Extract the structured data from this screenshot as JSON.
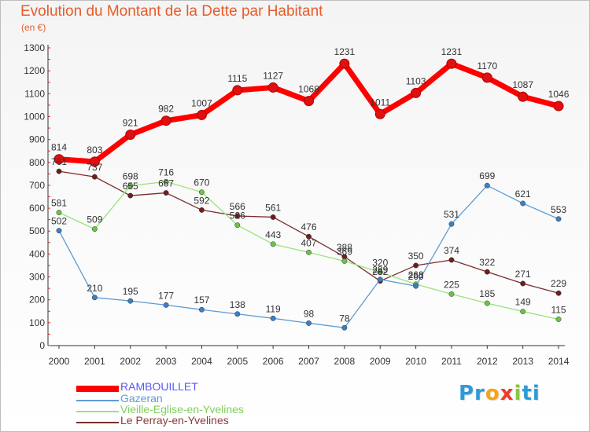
{
  "header": {
    "title": "Evolution du Montant de la Dette par Habitant",
    "unit": "(en €)"
  },
  "logo": {
    "parts": [
      {
        "text": "Pr",
        "color": "#2e9ad8"
      },
      {
        "text": "o",
        "color": "#f7a21b"
      },
      {
        "text": "x",
        "color": "#e93c2a"
      },
      {
        "text": "i",
        "color": "#8cc63f"
      },
      {
        "text": "ti",
        "color": "#2e9ad8"
      }
    ]
  },
  "chart_data": {
    "type": "line",
    "title": "Evolution du Montant de la Dette par Habitant",
    "subtitle": "(en €)",
    "x": [
      "2000",
      "2001",
      "2002",
      "2003",
      "2004",
      "2005",
      "2006",
      "2007",
      "2008",
      "2009",
      "2010",
      "2011",
      "2012",
      "2013",
      "2014"
    ],
    "ylim": [
      0,
      1300
    ],
    "yticks": [
      0,
      100,
      200,
      300,
      400,
      500,
      600,
      700,
      800,
      900,
      1000,
      1100,
      1200,
      1300
    ],
    "grid": false,
    "legend_position": "bottom-left",
    "series": [
      {
        "name": "RAMBOUILLET",
        "color": "#ff0000",
        "marker_color": "#e01010",
        "text_color": "#5858f8",
        "width": "thick",
        "values": [
          814,
          803,
          921,
          982,
          1007,
          1115,
          1127,
          1068,
          1231,
          1011,
          1103,
          1231,
          1170,
          1087,
          1046
        ]
      },
      {
        "name": "Gazeran",
        "color": "#5d9bd3",
        "marker_color": "#3b7fc4",
        "text_color": "#5d9bd3",
        "width": "thin",
        "values": [
          502,
          210,
          195,
          177,
          157,
          138,
          119,
          98,
          78,
          289,
          260,
          531,
          699,
          621,
          553
        ]
      },
      {
        "name": "Vieille-Eglise-en-Yvelines",
        "color": "#9be37a",
        "marker_color": "#6cc24a",
        "text_color": "#7dcf5a",
        "width": "thin",
        "values": [
          581,
          509,
          698,
          716,
          670,
          526,
          443,
          407,
          369,
          320,
          268,
          225,
          185,
          149,
          115
        ]
      },
      {
        "name": "Le Perray-en-Yvelines",
        "color": "#7a2c2c",
        "marker_color": "#6b1f1f",
        "text_color": "#8b3a3a",
        "width": "thin",
        "values": [
          761,
          737,
          655,
          667,
          592,
          566,
          561,
          476,
          388,
          282,
          350,
          374,
          322,
          271,
          229
        ]
      }
    ]
  }
}
